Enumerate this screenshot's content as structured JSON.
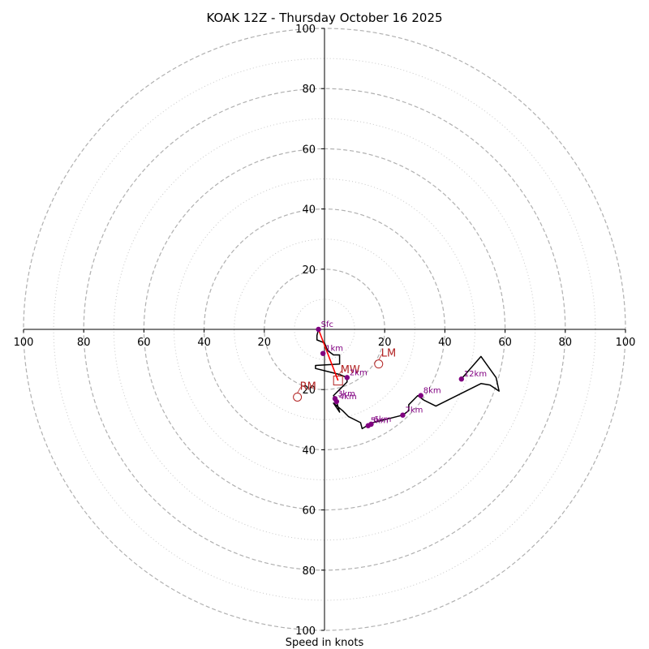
{
  "chart_data": {
    "type": "hodograph",
    "title": "KOAK 12Z - Thursday October 16 2025",
    "xlabel": "Speed in knots",
    "range": [
      -100,
      100
    ],
    "major_rings": [
      20,
      40,
      60,
      80,
      100
    ],
    "minor_rings": [
      10,
      30,
      50,
      70,
      90
    ],
    "x_tick_labels": [
      "100",
      "80",
      "60",
      "40",
      "20",
      "20",
      "40",
      "60",
      "80",
      "100"
    ],
    "x_tick_values": [
      -100,
      -80,
      -60,
      -40,
      -20,
      20,
      40,
      60,
      80,
      100
    ],
    "y_tick_labels": [
      "100",
      "80",
      "60",
      "40",
      "20",
      "20",
      "40",
      "60",
      "80",
      "100"
    ],
    "y_tick_values": [
      100,
      80,
      60,
      40,
      20,
      -20,
      -40,
      -60,
      -80,
      -100
    ],
    "trace": [
      [
        -2,
        0
      ],
      [
        -2.5,
        -2
      ],
      [
        -2.5,
        -3.5
      ],
      [
        0,
        -4.5
      ],
      [
        1,
        -7
      ],
      [
        3,
        -8.5
      ],
      [
        5,
        -8.5
      ],
      [
        5,
        -11.5
      ],
      [
        -3,
        -12
      ],
      [
        -3,
        -13
      ],
      [
        1,
        -14
      ],
      [
        5,
        -15
      ],
      [
        7.5,
        -16
      ],
      [
        7.5,
        -17.5
      ],
      [
        5,
        -20
      ],
      [
        3,
        -22
      ],
      [
        4,
        -24
      ],
      [
        5,
        -27.5
      ],
      [
        3,
        -24.5
      ],
      [
        6,
        -27
      ],
      [
        8,
        -29
      ],
      [
        12,
        -31
      ],
      [
        12.5,
        -33
      ],
      [
        15,
        -31.5
      ],
      [
        16,
        -31
      ],
      [
        20,
        -30
      ],
      [
        26,
        -28.5
      ],
      [
        28,
        -27
      ],
      [
        28,
        -25
      ],
      [
        31,
        -22
      ],
      [
        33,
        -23.5
      ],
      [
        37,
        -25.5
      ],
      [
        52,
        -18
      ],
      [
        55,
        -18.5
      ],
      [
        58,
        -20.5
      ],
      [
        57,
        -16
      ],
      [
        52,
        -9
      ],
      [
        45,
        -17
      ]
    ],
    "height_markers": [
      {
        "label": "Sfc",
        "u": -2,
        "v": 0
      },
      {
        "label": "1km",
        "u": -0.5,
        "v": -8
      },
      {
        "label": "2km",
        "u": 7.5,
        "v": -16
      },
      {
        "label": "3km",
        "u": 3.5,
        "v": -23
      },
      {
        "label": "4km",
        "u": 4,
        "v": -24
      },
      {
        "label": "5km",
        "u": 14.5,
        "v": -32
      },
      {
        "label": "6km",
        "u": 15.5,
        "v": -31.5
      },
      {
        "label": "7km",
        "u": 26,
        "v": -28.5
      },
      {
        "label": "8km",
        "u": 32,
        "v": -22
      },
      {
        "label": "12km",
        "u": 45.5,
        "v": -16.5
      }
    ],
    "storm_motions": [
      {
        "label": "LM",
        "u": 18,
        "v": -11.5,
        "marker": "circle"
      },
      {
        "label": "RM",
        "u": -9,
        "v": -22.5,
        "marker": "circle"
      },
      {
        "label": "MW",
        "u": 4.5,
        "v": -17,
        "marker": "square"
      }
    ],
    "shear_vector": {
      "from": [
        -2,
        0
      ],
      "to": [
        4.5,
        -17
      ]
    },
    "colors": {
      "trace": "#000000",
      "markers": "#800080",
      "storm": "#b22222",
      "shear": "#ff0000",
      "major_ring": "#b0b0b0",
      "minor_ring": "#c8c8c8"
    }
  }
}
